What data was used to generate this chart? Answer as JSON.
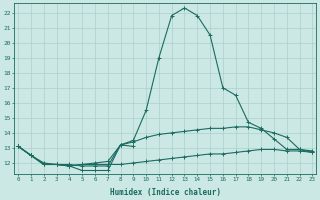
{
  "xlabel": "Humidex (Indice chaleur)",
  "background_color": "#cce8e5",
  "grid_color": "#aad0cc",
  "line_color": "#1a6b60",
  "x_values": [
    0,
    1,
    2,
    3,
    4,
    5,
    6,
    7,
    8,
    9,
    10,
    11,
    12,
    13,
    14,
    15,
    16,
    17,
    18,
    19,
    20,
    21,
    22,
    23
  ],
  "line_peak": [
    13.1,
    12.5,
    12.0,
    11.9,
    11.9,
    11.8,
    11.8,
    11.8,
    13.2,
    13.5,
    15.5,
    19.0,
    21.8,
    22.3,
    21.8,
    20.5,
    17.0,
    16.5,
    14.7,
    14.3,
    13.6,
    12.9,
    12.9,
    12.8
  ],
  "line_mid": [
    13.1,
    12.5,
    11.9,
    11.9,
    11.8,
    11.9,
    12.0,
    12.1,
    13.2,
    13.4,
    13.7,
    13.9,
    14.0,
    14.1,
    14.2,
    14.3,
    14.3,
    14.4,
    14.4,
    14.2,
    14.0,
    13.7,
    12.9,
    12.7
  ],
  "line_low": [
    13.1,
    12.5,
    11.9,
    11.9,
    11.8,
    11.9,
    11.9,
    11.9,
    11.9,
    12.0,
    12.1,
    12.2,
    12.3,
    12.4,
    12.5,
    12.6,
    12.6,
    12.7,
    12.8,
    12.9,
    12.9,
    12.8,
    12.8,
    12.7
  ],
  "line_loop_x": [
    0,
    1,
    2,
    3,
    4,
    5,
    6,
    7,
    8,
    9
  ],
  "line_loop_y": [
    13.1,
    12.5,
    11.9,
    11.9,
    11.8,
    11.5,
    11.5,
    11.5,
    13.2,
    13.1
  ],
  "ylim": [
    11.3,
    22.6
  ],
  "xlim": [
    -0.3,
    23.3
  ],
  "yticks": [
    12,
    13,
    14,
    15,
    16,
    17,
    18,
    19,
    20,
    21,
    22
  ],
  "xticks": [
    0,
    1,
    2,
    3,
    4,
    5,
    6,
    7,
    8,
    9,
    10,
    11,
    12,
    13,
    14,
    15,
    16,
    17,
    18,
    19,
    20,
    21,
    22,
    23
  ]
}
